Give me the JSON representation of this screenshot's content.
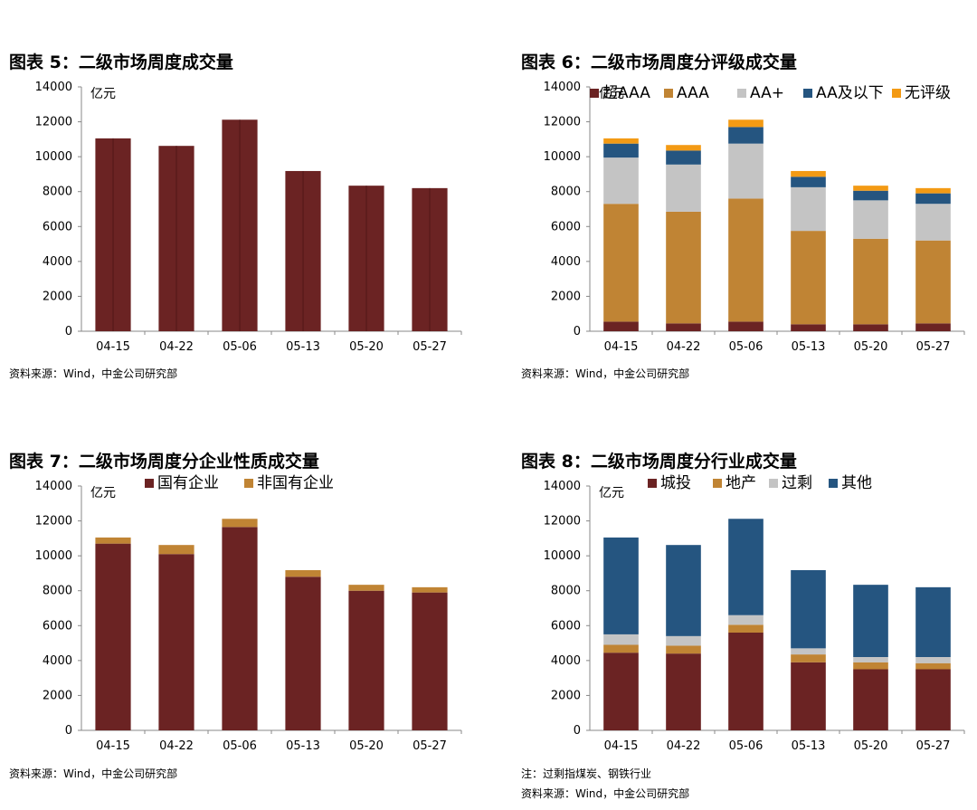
{
  "colors": {
    "maroon": "#6b2323",
    "orange": "#c08434",
    "gray": "#c4c4c4",
    "navy": "#255580",
    "amber": "#f39a14",
    "axis": "#888888"
  },
  "charts": [
    {
      "title": "图表 5：二级市场周度成交量",
      "source": "资料来源：Wind，中金公司研究部"
    },
    {
      "title": "图表 6：二级市场周度分评级成交量",
      "source": "资料来源：Wind，中金公司研究部"
    },
    {
      "title": "图表 7：二级市场周度分企业性质成交量",
      "source": "资料来源：Wind，中金公司研究部"
    },
    {
      "title": "图表 8：二级市场周度分行业成交量",
      "note": "注：过剩指煤炭、钢铁行业",
      "source": "资料来源：Wind，中金公司研究部"
    }
  ],
  "chart_data": [
    {
      "type": "bar",
      "title": "图表 5：二级市场周度成交量",
      "unit": "亿元",
      "categories": [
        "04-15",
        "04-22",
        "05-06",
        "05-13",
        "05-20",
        "05-27"
      ],
      "yticks": [
        "0",
        "2000",
        "4000",
        "6000",
        "8000",
        "10000",
        "12000",
        "14000"
      ],
      "ylim": [
        0,
        14000
      ],
      "grid": false,
      "series": [
        {
          "values": [
            11050,
            10620,
            12120,
            9180,
            8340,
            8200
          ],
          "color": "#6b2323"
        }
      ]
    },
    {
      "type": "bar",
      "stacked": true,
      "title": "图表 6：二级市场周度分评级成交量",
      "unit": "亿元",
      "categories": [
        "04-15",
        "04-22",
        "05-06",
        "05-13",
        "05-20",
        "05-27"
      ],
      "yticks": [
        "0",
        "2000",
        "4000",
        "6000",
        "8000",
        "10000",
        "12000",
        "14000"
      ],
      "ylim": [
        0,
        14000
      ],
      "grid": false,
      "legend": "top",
      "series": [
        {
          "name": "超AAA",
          "values": [
            550,
            450,
            550,
            400,
            400,
            450
          ],
          "color": "#6b2323"
        },
        {
          "name": "AAA",
          "values": [
            6750,
            6400,
            7050,
            5350,
            4900,
            4750
          ],
          "color": "#c08434"
        },
        {
          "name": "AA+",
          "values": [
            2650,
            2700,
            3150,
            2500,
            2200,
            2100
          ],
          "color": "#c4c4c4"
        },
        {
          "name": "AA及以下",
          "values": [
            800,
            800,
            950,
            600,
            550,
            600
          ],
          "color": "#255580"
        },
        {
          "name": "无评级",
          "values": [
            300,
            320,
            420,
            330,
            290,
            300
          ],
          "color": "#f39a14"
        }
      ]
    },
    {
      "type": "bar",
      "stacked": true,
      "title": "图表 7：二级市场周度分企业性质成交量",
      "unit": "亿元",
      "categories": [
        "04-15",
        "04-22",
        "05-06",
        "05-13",
        "05-20",
        "05-27"
      ],
      "yticks": [
        "0",
        "2000",
        "4000",
        "6000",
        "8000",
        "10000",
        "12000",
        "14000"
      ],
      "ylim": [
        0,
        14000
      ],
      "grid": false,
      "legend": "top",
      "series": [
        {
          "name": "国有企业",
          "values": [
            10700,
            10100,
            11650,
            8800,
            8000,
            7900
          ],
          "color": "#6b2323"
        },
        {
          "name": "非国有企业",
          "values": [
            350,
            520,
            470,
            380,
            340,
            300
          ],
          "color": "#c08434"
        }
      ]
    },
    {
      "type": "bar",
      "stacked": true,
      "title": "图表 8：二级市场周度分行业成交量",
      "unit": "亿元",
      "categories": [
        "04-15",
        "04-22",
        "05-06",
        "05-13",
        "05-20",
        "05-27"
      ],
      "yticks": [
        "0",
        "2000",
        "4000",
        "6000",
        "8000",
        "10000",
        "12000",
        "14000"
      ],
      "ylim": [
        0,
        14000
      ],
      "grid": false,
      "legend": "top",
      "series": [
        {
          "name": "城投",
          "values": [
            4450,
            4400,
            5600,
            3900,
            3500,
            3500
          ],
          "color": "#6b2323"
        },
        {
          "name": "地产",
          "values": [
            450,
            450,
            450,
            450,
            400,
            350
          ],
          "color": "#c08434"
        },
        {
          "name": "过剩",
          "values": [
            600,
            550,
            550,
            350,
            300,
            350
          ],
          "color": "#c4c4c4"
        },
        {
          "name": "其他",
          "values": [
            5550,
            5220,
            5520,
            4480,
            4140,
            4000
          ],
          "color": "#255580"
        }
      ]
    }
  ]
}
